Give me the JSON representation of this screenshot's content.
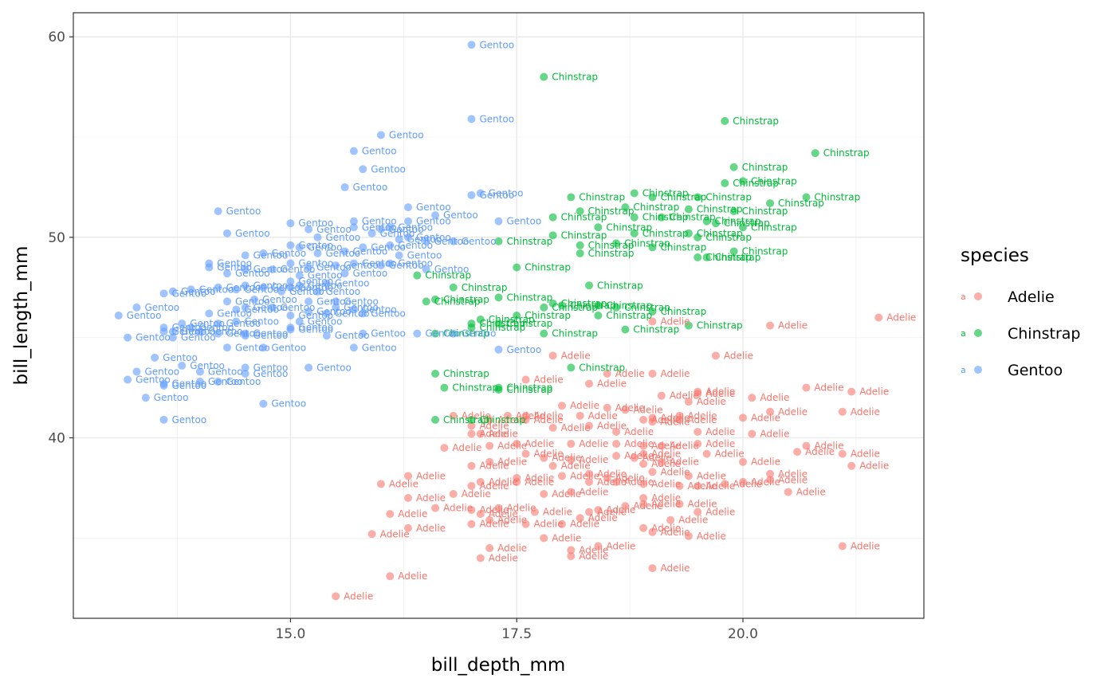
{
  "chart_data": {
    "type": "scatter",
    "xlabel": "bill_depth_mm",
    "ylabel": "bill_length_mm",
    "xlim": [
      12.6,
      22.0
    ],
    "ylim": [
      31.0,
      61.2
    ],
    "x_ticks": [
      15.0,
      17.5,
      20.0
    ],
    "x_tick_labels": [
      "15.0",
      "17.5",
      "20.0"
    ],
    "y_ticks": [
      40,
      50,
      60
    ],
    "y_tick_labels": [
      "40",
      "50",
      "60"
    ],
    "grid": true,
    "point_labels": true,
    "legend": {
      "title": "species",
      "placement": "right",
      "key_glyph": "a"
    },
    "series": [
      {
        "name": "Adelie",
        "color": "#F8766D",
        "points": [
          [
            15.5,
            32.1
          ],
          [
            16.1,
            33.1
          ],
          [
            19.0,
            33.5
          ],
          [
            17.1,
            34.0
          ],
          [
            18.1,
            34.1
          ],
          [
            17.2,
            34.5
          ],
          [
            18.1,
            34.4
          ],
          [
            18.4,
            34.6
          ],
          [
            21.1,
            34.6
          ],
          [
            15.9,
            35.2
          ],
          [
            19.0,
            35.3
          ],
          [
            17.8,
            35.0
          ],
          [
            19.4,
            35.1
          ],
          [
            16.3,
            35.5
          ],
          [
            17.0,
            35.7
          ],
          [
            18.0,
            35.7
          ],
          [
            18.9,
            35.5
          ],
          [
            17.2,
            35.9
          ],
          [
            18.2,
            36.0
          ],
          [
            19.2,
            35.9
          ],
          [
            17.6,
            35.7
          ],
          [
            16.1,
            36.2
          ],
          [
            17.1,
            36.2
          ],
          [
            17.7,
            36.3
          ],
          [
            18.3,
            36.3
          ],
          [
            19.5,
            36.3
          ],
          [
            16.6,
            36.5
          ],
          [
            17.3,
            36.5
          ],
          [
            18.4,
            36.4
          ],
          [
            19.3,
            36.7
          ],
          [
            17.0,
            36.4
          ],
          [
            18.7,
            36.6
          ],
          [
            18.9,
            36.7
          ],
          [
            16.3,
            37.0
          ],
          [
            16.8,
            37.2
          ],
          [
            17.8,
            37.2
          ],
          [
            18.1,
            37.3
          ],
          [
            18.9,
            37.0
          ],
          [
            19.8,
            37.7
          ],
          [
            20.5,
            37.3
          ],
          [
            17.0,
            37.6
          ],
          [
            18.3,
            37.8
          ],
          [
            18.6,
            37.8
          ],
          [
            19.3,
            37.6
          ],
          [
            17.5,
            37.8
          ],
          [
            18.9,
            37.7
          ],
          [
            19.5,
            37.6
          ],
          [
            16.0,
            37.7
          ],
          [
            16.3,
            38.1
          ],
          [
            17.1,
            37.8
          ],
          [
            17.5,
            38.0
          ],
          [
            18.0,
            38.1
          ],
          [
            18.5,
            38.0
          ],
          [
            19.0,
            38.3
          ],
          [
            19.4,
            38.1
          ],
          [
            20.0,
            37.8
          ],
          [
            20.3,
            37.9
          ],
          [
            20.3,
            38.2
          ],
          [
            17.2,
            38.8
          ],
          [
            17.9,
            38.6
          ],
          [
            18.9,
            38.7
          ],
          [
            19.1,
            38.8
          ],
          [
            20.0,
            38.8
          ],
          [
            21.2,
            38.6
          ],
          [
            16.7,
            39.5
          ],
          [
            17.0,
            38.6
          ],
          [
            17.2,
            39.6
          ],
          [
            17.6,
            39.2
          ],
          [
            17.8,
            39.0
          ],
          [
            18.1,
            38.9
          ],
          [
            18.3,
            38.2
          ],
          [
            18.6,
            39.1
          ],
          [
            18.8,
            39.0
          ],
          [
            18.9,
            39.2
          ],
          [
            19.1,
            39.6
          ],
          [
            19.6,
            39.2
          ],
          [
            20.6,
            39.3
          ],
          [
            20.7,
            39.6
          ],
          [
            21.1,
            39.2
          ],
          [
            17.0,
            40.6
          ],
          [
            17.1,
            40.2
          ],
          [
            17.2,
            40.9
          ],
          [
            17.0,
            40.2
          ],
          [
            17.6,
            40.9
          ],
          [
            17.9,
            40.5
          ],
          [
            18.3,
            40.6
          ],
          [
            18.6,
            40.3
          ],
          [
            18.9,
            40.9
          ],
          [
            19.0,
            40.8
          ],
          [
            19.3,
            40.9
          ],
          [
            19.5,
            40.3
          ],
          [
            20.1,
            40.2
          ],
          [
            17.5,
            39.7
          ],
          [
            18.1,
            39.7
          ],
          [
            18.6,
            39.7
          ],
          [
            18.9,
            39.6
          ],
          [
            19.5,
            39.7
          ],
          [
            16.8,
            41.1
          ],
          [
            17.4,
            41.1
          ],
          [
            17.6,
            41.1
          ],
          [
            18.0,
            41.6
          ],
          [
            18.2,
            41.1
          ],
          [
            18.5,
            41.5
          ],
          [
            18.7,
            41.4
          ],
          [
            19.0,
            41.0
          ],
          [
            19.3,
            41.1
          ],
          [
            20.0,
            41.0
          ],
          [
            20.3,
            41.3
          ],
          [
            21.1,
            41.3
          ],
          [
            17.6,
            42.9
          ],
          [
            18.3,
            42.7
          ],
          [
            18.5,
            43.2
          ],
          [
            19.0,
            43.2
          ],
          [
            19.1,
            42.1
          ],
          [
            19.4,
            41.8
          ],
          [
            19.5,
            42.3
          ],
          [
            20.1,
            42.0
          ],
          [
            20.7,
            42.5
          ],
          [
            21.2,
            42.3
          ],
          [
            19.5,
            42.2
          ],
          [
            17.9,
            44.1
          ],
          [
            19.7,
            44.1
          ],
          [
            19.0,
            45.8
          ],
          [
            20.3,
            45.6
          ],
          [
            21.5,
            46.0
          ]
        ]
      },
      {
        "name": "Chinstrap",
        "color": "#00BA38",
        "points": [
          [
            17.8,
            58.0
          ],
          [
            19.8,
            55.8
          ],
          [
            20.8,
            54.2
          ],
          [
            19.9,
            53.5
          ],
          [
            20.0,
            52.8
          ],
          [
            19.8,
            52.7
          ],
          [
            20.3,
            51.7
          ],
          [
            20.7,
            52.0
          ],
          [
            18.1,
            52.0
          ],
          [
            18.8,
            52.2
          ],
          [
            19.0,
            52.0
          ],
          [
            19.5,
            52.0
          ],
          [
            18.2,
            51.3
          ],
          [
            18.7,
            51.5
          ],
          [
            18.8,
            51.0
          ],
          [
            19.1,
            51.0
          ],
          [
            19.6,
            50.8
          ],
          [
            19.9,
            51.3
          ],
          [
            19.4,
            51.4
          ],
          [
            20.0,
            50.5
          ],
          [
            19.7,
            50.7
          ],
          [
            17.9,
            51.0
          ],
          [
            18.4,
            50.5
          ],
          [
            18.2,
            49.6
          ],
          [
            18.6,
            49.7
          ],
          [
            18.8,
            50.2
          ],
          [
            19.0,
            49.5
          ],
          [
            19.4,
            50.2
          ],
          [
            19.5,
            50.0
          ],
          [
            19.9,
            49.3
          ],
          [
            19.5,
            49.0
          ],
          [
            19.6,
            49.0
          ],
          [
            18.2,
            49.2
          ],
          [
            17.9,
            50.1
          ],
          [
            17.3,
            49.8
          ],
          [
            17.5,
            48.5
          ],
          [
            16.4,
            48.1
          ],
          [
            16.8,
            47.5
          ],
          [
            18.3,
            47.6
          ],
          [
            16.6,
            46.9
          ],
          [
            16.5,
            46.8
          ],
          [
            17.3,
            47.0
          ],
          [
            17.8,
            46.5
          ],
          [
            17.9,
            46.7
          ],
          [
            18.0,
            46.6
          ],
          [
            18.4,
            46.6
          ],
          [
            18.6,
            46.5
          ],
          [
            19.0,
            46.3
          ],
          [
            19.4,
            45.6
          ],
          [
            17.0,
            45.5
          ],
          [
            17.1,
            45.9
          ],
          [
            17.3,
            45.7
          ],
          [
            17.5,
            46.1
          ],
          [
            17.8,
            45.2
          ],
          [
            18.4,
            46.1
          ],
          [
            18.7,
            45.4
          ],
          [
            16.6,
            45.2
          ],
          [
            17.0,
            45.7
          ],
          [
            16.6,
            43.2
          ],
          [
            16.7,
            42.5
          ],
          [
            17.3,
            42.5
          ],
          [
            17.3,
            42.4
          ],
          [
            18.1,
            43.5
          ],
          [
            16.6,
            40.9
          ],
          [
            17.0,
            40.9
          ]
        ]
      },
      {
        "name": "Gentoo",
        "color": "#619CFF",
        "points": [
          [
            17.0,
            59.6
          ],
          [
            17.0,
            55.9
          ],
          [
            16.0,
            55.1
          ],
          [
            15.7,
            54.3
          ],
          [
            15.8,
            53.4
          ],
          [
            15.6,
            52.5
          ],
          [
            17.0,
            52.1
          ],
          [
            17.1,
            52.2
          ],
          [
            14.2,
            51.3
          ],
          [
            14.3,
            50.2
          ],
          [
            16.3,
            51.5
          ],
          [
            16.3,
            50.8
          ],
          [
            16.6,
            51.1
          ],
          [
            17.3,
            50.8
          ],
          [
            15.0,
            50.7
          ],
          [
            15.2,
            50.4
          ],
          [
            15.3,
            50.0
          ],
          [
            15.7,
            50.8
          ],
          [
            15.7,
            50.5
          ],
          [
            16.0,
            50.4
          ],
          [
            16.1,
            50.5
          ],
          [
            16.3,
            50.0
          ],
          [
            15.1,
            49.5
          ],
          [
            15.3,
            49.2
          ],
          [
            15.6,
            49.3
          ],
          [
            15.8,
            49.5
          ],
          [
            15.9,
            50.2
          ],
          [
            16.1,
            49.6
          ],
          [
            16.2,
            49.9
          ],
          [
            16.5,
            49.8
          ],
          [
            16.8,
            49.8
          ],
          [
            14.5,
            49.1
          ],
          [
            14.7,
            49.2
          ],
          [
            15.0,
            49.6
          ],
          [
            15.0,
            48.7
          ],
          [
            15.2,
            48.5
          ],
          [
            15.5,
            48.6
          ],
          [
            15.7,
            48.7
          ],
          [
            16.0,
            48.6
          ],
          [
            16.1,
            48.7
          ],
          [
            16.2,
            49.1
          ],
          [
            16.5,
            48.4
          ],
          [
            14.1,
            48.7
          ],
          [
            14.1,
            48.5
          ],
          [
            14.3,
            48.2
          ],
          [
            14.5,
            48.4
          ],
          [
            14.8,
            48.4
          ],
          [
            15.0,
            47.8
          ],
          [
            15.0,
            47.5
          ],
          [
            15.1,
            48.1
          ],
          [
            15.1,
            47.6
          ],
          [
            15.3,
            47.3
          ],
          [
            15.5,
            46.8
          ],
          [
            15.6,
            48.2
          ],
          [
            15.4,
            47.7
          ],
          [
            13.6,
            47.2
          ],
          [
            13.7,
            47.3
          ],
          [
            13.9,
            47.4
          ],
          [
            14.2,
            47.5
          ],
          [
            14.4,
            47.4
          ],
          [
            14.5,
            47.6
          ],
          [
            14.7,
            47.5
          ],
          [
            14.9,
            47.3
          ],
          [
            15.2,
            46.8
          ],
          [
            15.4,
            46.2
          ],
          [
            15.7,
            46.4
          ],
          [
            15.8,
            46.2
          ],
          [
            15.5,
            46.5
          ],
          [
            13.1,
            46.1
          ],
          [
            13.3,
            46.5
          ],
          [
            13.6,
            45.5
          ],
          [
            13.7,
            45.3
          ],
          [
            13.8,
            45.7
          ],
          [
            14.0,
            45.3
          ],
          [
            14.1,
            46.2
          ],
          [
            14.3,
            46.8
          ],
          [
            14.4,
            46.4
          ],
          [
            14.5,
            46.5
          ],
          [
            14.6,
            46.9
          ],
          [
            14.8,
            46.5
          ],
          [
            15.0,
            46.1
          ],
          [
            15.1,
            45.8
          ],
          [
            15.2,
            46.3
          ],
          [
            15.0,
            45.5
          ],
          [
            14.2,
            45.7
          ],
          [
            14.4,
            45.8
          ],
          [
            14.5,
            45.2
          ],
          [
            13.2,
            45.0
          ],
          [
            13.6,
            45.3
          ],
          [
            13.7,
            45.0
          ],
          [
            13.9,
            45.5
          ],
          [
            14.2,
            45.2
          ],
          [
            14.3,
            44.5
          ],
          [
            14.5,
            45.1
          ],
          [
            14.7,
            44.5
          ],
          [
            15.0,
            45.4
          ],
          [
            15.4,
            45.1
          ],
          [
            15.7,
            44.5
          ],
          [
            15.8,
            45.2
          ],
          [
            16.4,
            45.2
          ],
          [
            16.8,
            45.2
          ],
          [
            17.3,
            44.4
          ],
          [
            13.5,
            44.0
          ],
          [
            13.8,
            43.6
          ],
          [
            14.0,
            43.3
          ],
          [
            13.3,
            43.3
          ],
          [
            14.5,
            43.2
          ],
          [
            14.5,
            43.5
          ],
          [
            13.2,
            42.9
          ],
          [
            13.6,
            42.7
          ],
          [
            13.6,
            42.6
          ],
          [
            14.0,
            42.8
          ],
          [
            14.2,
            42.8
          ],
          [
            15.2,
            43.5
          ],
          [
            13.4,
            42.0
          ],
          [
            14.7,
            41.7
          ],
          [
            13.6,
            40.9
          ]
        ]
      }
    ]
  }
}
